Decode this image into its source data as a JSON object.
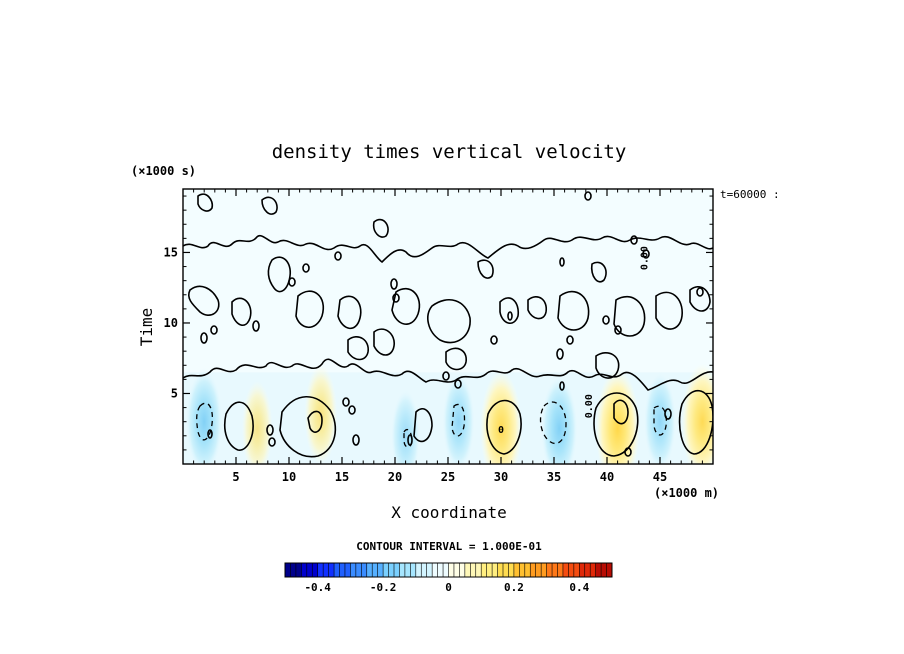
{
  "chart_data": {
    "type": "heatmap",
    "title": "density times vertical velocity",
    "xlabel": "X coordinate",
    "ylabel": "Time",
    "x_unit_label": "(×1000 m)",
    "y_unit_label": "(×1000 s)",
    "time_stamp": "t=60000 :",
    "xlim": [
      0,
      50
    ],
    "ylim": [
      0,
      19.5
    ],
    "x_ticks": [
      5,
      10,
      15,
      20,
      25,
      30,
      35,
      40,
      45
    ],
    "y_ticks": [
      5,
      10,
      15
    ],
    "contour_interval_text": "CONTOUR INTERVAL = 1.000E-01",
    "contour_labels": [
      {
        "text": "0",
        "x": 30.0,
        "y": 2.2
      },
      {
        "text": "0.00",
        "x": 38.6,
        "y": 4.1
      },
      {
        "text": "0.00",
        "x": 43.8,
        "y": 14.6
      }
    ],
    "colorbar": {
      "range": [
        -0.5,
        0.5
      ],
      "ticks": [
        -0.4,
        -0.2,
        0,
        0.2,
        0.4
      ],
      "tick_labels": [
        "-0.4",
        "-0.2",
        "0",
        "0.2",
        "0.4"
      ],
      "colors": [
        "#00008b",
        "#0000cd",
        "#1030ff",
        "#2060ff",
        "#3a8cff",
        "#56b0ff",
        "#7ad0ff",
        "#a6e6ff",
        "#d2f4ff",
        "#eefcff",
        "#fffee6",
        "#fff8b8",
        "#ffee80",
        "#ffdc50",
        "#ffc030",
        "#ff9c20",
        "#ff7818",
        "#f44c10",
        "#e02808",
        "#b80c04"
      ]
    },
    "features": [
      {
        "kind": "negative",
        "x": 2.0,
        "y": 3.0,
        "value": -0.12
      },
      {
        "kind": "positive",
        "x": 7.0,
        "y": 2.5,
        "value": 0.06
      },
      {
        "kind": "positive",
        "x": 13.0,
        "y": 3.5,
        "value": 0.08
      },
      {
        "kind": "negative",
        "x": 21.0,
        "y": 2.0,
        "value": -0.05
      },
      {
        "kind": "negative",
        "x": 26.0,
        "y": 3.0,
        "value": -0.08
      },
      {
        "kind": "positive",
        "x": 30.0,
        "y": 2.5,
        "value": 0.16
      },
      {
        "kind": "negative",
        "x": 35.5,
        "y": 2.5,
        "value": -0.12
      },
      {
        "kind": "positive",
        "x": 41.0,
        "y": 2.5,
        "value": 0.18
      },
      {
        "kind": "negative",
        "x": 45.0,
        "y": 3.0,
        "value": -0.08
      },
      {
        "kind": "positive",
        "x": 49.0,
        "y": 3.0,
        "value": 0.16
      }
    ],
    "legend": "none",
    "grid": false
  }
}
